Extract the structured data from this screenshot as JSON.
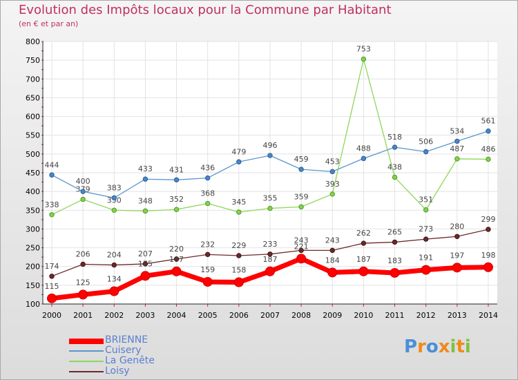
{
  "header": {
    "title": "Evolution des Impôts locaux pour la Commune par Habitant",
    "subtitle": "(en € et par an)"
  },
  "chart_data": {
    "type": "line",
    "title": "Evolution des Impôts locaux pour la Commune par Habitant",
    "subtitle": "(en € et par an)",
    "xlabel": "",
    "ylabel": "",
    "ylim": [
      100,
      800
    ],
    "yticks": [
      100,
      150,
      200,
      250,
      300,
      350,
      400,
      450,
      500,
      550,
      600,
      650,
      700,
      750,
      800
    ],
    "grid": true,
    "categories": [
      "2000",
      "2001",
      "2002",
      "2003",
      "2004",
      "2005",
      "2006",
      "2007",
      "2008",
      "2009",
      "2010",
      "2011",
      "2012",
      "2013",
      "2014"
    ],
    "series": [
      {
        "name": "BRIENNE",
        "color": "#ff0000",
        "values": [
          115,
          125,
          134,
          175,
          187,
          159,
          158,
          187,
          221,
          184,
          187,
          183,
          191,
          197,
          198
        ]
      },
      {
        "name": "Cuisery",
        "color": "#5b95cc",
        "values": [
          444,
          400,
          383,
          433,
          431,
          436,
          479,
          496,
          459,
          453,
          488,
          518,
          506,
          534,
          561
        ]
      },
      {
        "name": "La Genête",
        "color": "#8ed65a",
        "values": [
          338,
          379,
          350,
          348,
          352,
          368,
          345,
          355,
          359,
          393,
          753,
          438,
          351,
          487,
          486
        ]
      },
      {
        "name": "Loisy",
        "color": "#6b2a2a",
        "values": [
          174,
          206,
          204,
          207,
          220,
          232,
          229,
          233,
          243,
          243,
          262,
          265,
          273,
          280,
          299
        ]
      }
    ],
    "legend_position": "bottom-left"
  },
  "logo": {
    "letters": [
      "P",
      "r",
      "o",
      "x",
      "i",
      "t",
      "i"
    ],
    "colors": [
      "#4a8fd8",
      "#f08a1c",
      "#4a8fd8",
      "#f08a1c",
      "#7fc241",
      "#f08a1c",
      "#7fc241"
    ]
  }
}
